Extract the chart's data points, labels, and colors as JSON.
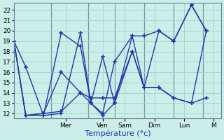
{
  "background_color": "#cceee8",
  "grid_color": "#aad4d0",
  "line_color": "#1a3aaa",
  "ylim": [
    11.5,
    22.7
  ],
  "xlim": [
    0,
    14
  ],
  "yticks": [
    12,
    13,
    14,
    15,
    16,
    17,
    18,
    19,
    20,
    21,
    22
  ],
  "xlabel": "Température (°c)",
  "day_labels": [
    "Mer",
    "Ven",
    "Sam",
    "Dim",
    "Lun",
    "M"
  ],
  "day_tick_positions": [
    3.5,
    6.0,
    7.5,
    9.5,
    11.5,
    13.5
  ],
  "day_sep_positions": [
    2.5,
    5.0,
    6.8,
    8.8,
    10.8,
    12.8
  ],
  "series": [
    {
      "x": [
        0,
        0.8,
        2.0,
        3.2,
        4.5,
        5.2,
        6.0,
        6.8,
        8.0,
        8.8,
        9.8,
        10.8,
        12.0,
        13.0
      ],
      "y": [
        19,
        16.5,
        11.8,
        19.8,
        18.5,
        13.0,
        17.5,
        13.0,
        19.5,
        19.5,
        20.0,
        19.0,
        22.5,
        20.0
      ]
    },
    {
      "x": [
        0,
        0.8,
        2.0,
        3.2,
        4.5,
        5.2,
        6.0,
        6.8,
        8.0,
        8.8,
        9.8,
        10.8,
        12.0,
        13.0
      ],
      "y": [
        19,
        11.8,
        12.0,
        16.0,
        14.0,
        13.0,
        11.8,
        13.0,
        18.0,
        14.5,
        14.5,
        13.5,
        13.0,
        20.0
      ]
    },
    {
      "x": [
        0,
        0.8,
        2.0,
        3.2,
        4.5,
        5.2,
        6.0,
        6.8,
        8.0,
        8.8,
        9.8,
        10.8,
        12.0,
        13.0
      ],
      "y": [
        19,
        11.8,
        12.0,
        12.2,
        14.0,
        13.5,
        13.5,
        13.5,
        18.0,
        14.5,
        14.5,
        13.5,
        13.0,
        13.5
      ]
    },
    {
      "x": [
        0,
        0.8,
        2.0,
        3.2,
        4.5,
        5.2,
        6.0,
        6.8,
        8.0,
        8.8,
        9.8,
        10.8,
        12.0,
        13.0
      ],
      "y": [
        19,
        11.8,
        11.8,
        12.0,
        19.8,
        13.0,
        12.0,
        17.0,
        19.5,
        14.5,
        20.0,
        19.0,
        22.5,
        20.0
      ]
    }
  ]
}
